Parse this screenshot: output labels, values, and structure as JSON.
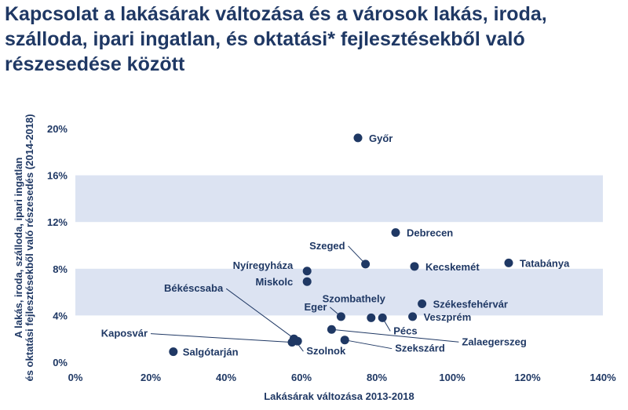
{
  "title": "Kapcsolat a lakásárak változása és a városok lakás, iroda, szálloda, ipari ingatlan, és oktatási* fejlesztésekből való részesedése között",
  "colors": {
    "title": "#1f3864",
    "point": "#1f3864",
    "band": "#dce3f2",
    "leader": "#1f3864"
  },
  "chart_data": {
    "type": "scatter",
    "title": "Kapcsolat a lakásárak változása és a városok lakás, iroda, szálloda, ipari ingatlan, és oktatási* fejlesztésekből való részesedése között",
    "xlabel": "Lakásárak változása 2013-2018",
    "ylabel": "A lakás, iroda, szálloda, ipari ingatlan és oktatási fejlesztésekből való részesedés (2014-2018)",
    "xlim": [
      0,
      140
    ],
    "ylim": [
      0,
      20
    ],
    "x_unit": "%",
    "y_unit": "%",
    "xticks": [
      "0%",
      "20%",
      "40%",
      "60%",
      "80%",
      "100%",
      "120%",
      "140%"
    ],
    "yticks": [
      "0%",
      "4%",
      "8%",
      "12%",
      "16%",
      "20%"
    ],
    "points": [
      {
        "label": "Győr",
        "x": 75,
        "y": 19.2
      },
      {
        "label": "Debrecen",
        "x": 85,
        "y": 11.1
      },
      {
        "label": "Szeged",
        "x": 77,
        "y": 8.4
      },
      {
        "label": "Kecskemét",
        "x": 90,
        "y": 8.2
      },
      {
        "label": "Tatabánya",
        "x": 115,
        "y": 8.5
      },
      {
        "label": "Nyíregyháza",
        "x": 61.5,
        "y": 7.8
      },
      {
        "label": "Miskolc",
        "x": 61.5,
        "y": 6.9
      },
      {
        "label": "Eger",
        "x": 70.5,
        "y": 3.9
      },
      {
        "label": "Székesfehérvár",
        "x": 92,
        "y": 5.0
      },
      {
        "label": "Szombathely",
        "x": 78.5,
        "y": 3.8
      },
      {
        "label": "Veszprém",
        "x": 89.5,
        "y": 3.9
      },
      {
        "label": "Pécs",
        "x": 81.5,
        "y": 3.8
      },
      {
        "label": "Zalaegerszeg",
        "x": 68,
        "y": 2.8
      },
      {
        "label": "Békéscsaba",
        "x": 59,
        "y": 1.8
      },
      {
        "label": "Kaposvár",
        "x": 57.5,
        "y": 1.7
      },
      {
        "label": "Szolnok",
        "x": 58,
        "y": 2.0
      },
      {
        "label": "Szekszárd",
        "x": 71.5,
        "y": 1.9
      },
      {
        "label": "Salgótarján",
        "x": 26,
        "y": 0.9
      }
    ]
  }
}
